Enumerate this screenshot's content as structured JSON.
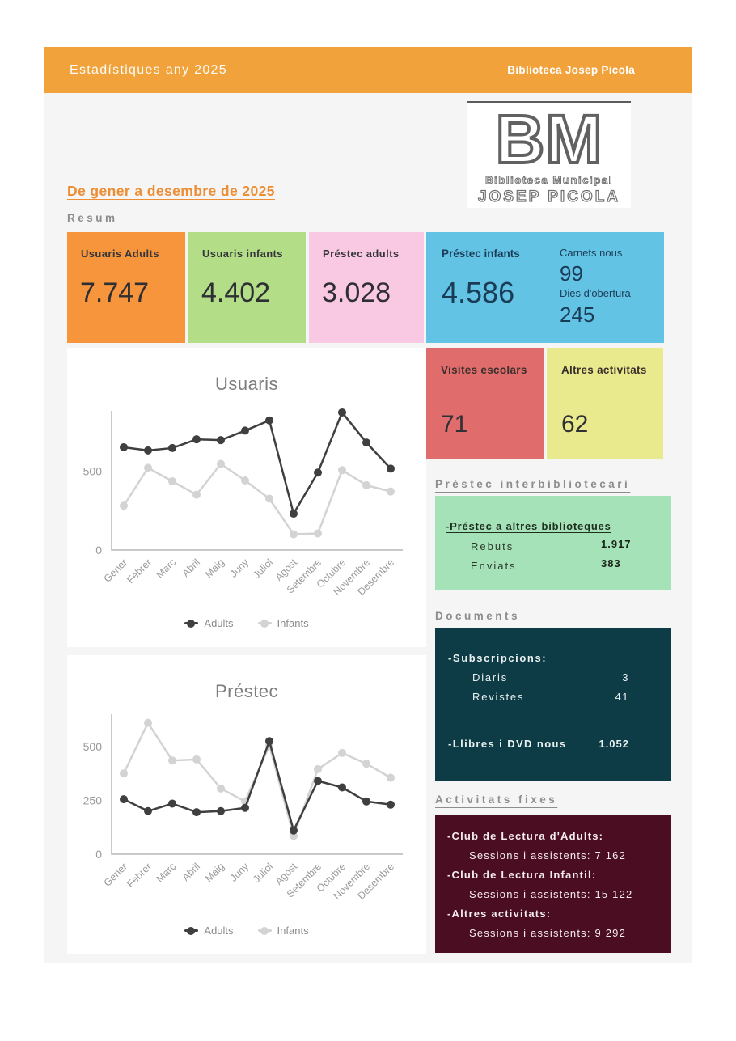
{
  "header": {
    "title": "Estadístiques any 2025",
    "brand": "Biblioteca Josep Picola"
  },
  "logo": {
    "initials": "BM",
    "line1": "Biblioteca Municipal",
    "line2": "JOSEP PICOLA"
  },
  "page": {
    "subtitle": "De gener a desembre de 2025",
    "resum_heading": "Resum"
  },
  "summary": {
    "cards": [
      {
        "label": "Usuaris Adults",
        "value": "7.747",
        "bg": "#F6953B"
      },
      {
        "label": "Usuaris infants",
        "value": "4.402",
        "bg": "#B3DD87"
      },
      {
        "label": "Préstec adults",
        "value": "3.028",
        "bg": "#F9C8E2"
      }
    ],
    "wide_card": {
      "label": "Préstec infants",
      "value": "4.586",
      "sub1_label": "Carnets nous",
      "sub1_value": "99",
      "sub2_label": "Dies d'obertura",
      "sub2_value": "245",
      "bg": "#63C3E4"
    },
    "small_cards": [
      {
        "label": "Visites escolars",
        "value": "71",
        "bg": "#E06C6C"
      },
      {
        "label": "Altres activitats",
        "value": "62",
        "bg": "#E9EA8D"
      }
    ]
  },
  "interlibrary": {
    "heading": "Préstec interbibliotecari",
    "subheading": "-Préstec a altres biblioteques",
    "rows": [
      {
        "label": "Rebuts",
        "value": "1.917"
      },
      {
        "label": "Enviats",
        "value": "383"
      }
    ],
    "bg": "#A5E2B7"
  },
  "documents": {
    "heading": "Documents",
    "subscriptions_label": "-Subscripcions:",
    "rows": [
      {
        "label": "Diaris",
        "value": "3"
      },
      {
        "label": "Revistes",
        "value": "41"
      }
    ],
    "books_label": "-Llibres i DVD nous",
    "books_value": "1.052",
    "bg": "#0D3B46"
  },
  "activities": {
    "heading": "Activitats fixes",
    "items": [
      {
        "title": "-Club de Lectura d'Adults:",
        "detail": "Sessions i assistents: 7 162"
      },
      {
        "title": "-Club de Lectura Infantil:",
        "detail": "Sessions i assistents: 15 122"
      },
      {
        "title": "-Altres activitats:",
        "detail": "Sessions i assistents: 9 292"
      }
    ],
    "bg": "#4A0D22"
  },
  "chart_data": [
    {
      "type": "line",
      "title": "Usuaris",
      "categories": [
        "Gener",
        "Febrer",
        "Març",
        "Abril",
        "Maig",
        "Juny",
        "Juliol",
        "Agost",
        "Setembre",
        "Octubre",
        "Novembre",
        "Desembre"
      ],
      "series": [
        {
          "name": "Adults",
          "color": "#3F3F3F",
          "values": [
            650,
            630,
            645,
            700,
            695,
            755,
            820,
            230,
            490,
            870,
            680,
            515
          ]
        },
        {
          "name": "Infants",
          "color": "#D3D3D3",
          "values": [
            280,
            520,
            435,
            350,
            545,
            440,
            325,
            100,
            105,
            505,
            410,
            370
          ]
        }
      ],
      "xlabel": "",
      "ylabel": "",
      "ylim": [
        0,
        880
      ],
      "yticks": [
        0,
        500
      ],
      "grid": false,
      "legend_position": "bottom"
    },
    {
      "type": "line",
      "title": "Préstec",
      "categories": [
        "Gener",
        "Febrer",
        "Març",
        "Abril",
        "Maig",
        "Juny",
        "Juliol",
        "Agost",
        "Setembre",
        "Octubre",
        "Novembre",
        "Desembre"
      ],
      "series": [
        {
          "name": "Adults",
          "color": "#3F3F3F",
          "values": [
            255,
            200,
            235,
            195,
            200,
            215,
            525,
            110,
            340,
            310,
            245,
            230
          ]
        },
        {
          "name": "Infants",
          "color": "#D3D3D3",
          "values": [
            375,
            610,
            435,
            440,
            305,
            245,
            505,
            85,
            395,
            470,
            420,
            355
          ]
        }
      ],
      "xlabel": "",
      "ylabel": "",
      "ylim": [
        0,
        650
      ],
      "yticks": [
        0,
        250,
        500
      ],
      "grid": false,
      "legend_position": "bottom"
    }
  ]
}
